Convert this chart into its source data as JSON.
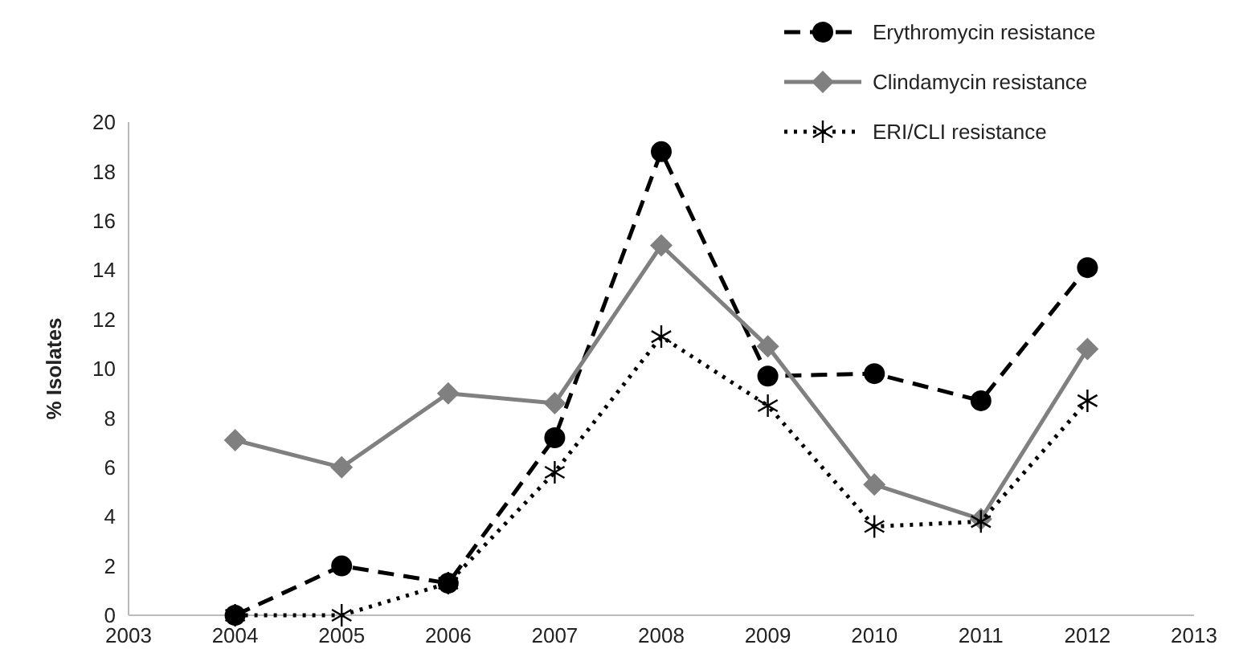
{
  "chart_data": {
    "type": "line",
    "ylabel": "% Isolates",
    "x": [
      2004,
      2005,
      2006,
      2007,
      2008,
      2009,
      2010,
      2011,
      2012
    ],
    "xlim": [
      2003,
      2013
    ],
    "xticks": [
      2003,
      2004,
      2005,
      2006,
      2007,
      2008,
      2009,
      2010,
      2011,
      2012,
      2013
    ],
    "ylim": [
      0,
      20
    ],
    "yticks": [
      0,
      2,
      4,
      6,
      8,
      10,
      12,
      14,
      16,
      18,
      20
    ],
    "grid": false,
    "legend": "top right",
    "series": [
      {
        "name": "Erythromycin resistance",
        "color": "#000000",
        "marker": "circle",
        "line_style": "dashed",
        "values": [
          0,
          2.0,
          1.3,
          7.2,
          18.8,
          9.7,
          9.8,
          8.7,
          14.1
        ]
      },
      {
        "name": "Clindamycin resistance",
        "color": "#808080",
        "marker": "diamond",
        "line_style": "solid",
        "values": [
          7.1,
          6.0,
          9.0,
          8.6,
          15.0,
          10.9,
          5.3,
          3.9,
          10.8
        ]
      },
      {
        "name": "ERI/CLI resistance",
        "color": "#000000",
        "marker": "cross",
        "line_style": "dotted",
        "values": [
          0,
          0,
          1.3,
          5.8,
          11.3,
          8.5,
          3.6,
          3.8,
          8.7
        ]
      }
    ]
  }
}
